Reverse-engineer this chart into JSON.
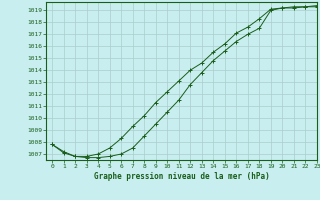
{
  "title": "Graphe pression niveau de la mer (hPa)",
  "bg_color": "#c8eef0",
  "grid_color": "#aacccc",
  "line_color": "#1a5e1a",
  "marker_color": "#1a5e1a",
  "xlim": [
    -0.5,
    23
  ],
  "ylim": [
    1006.5,
    1019.7
  ],
  "xticks": [
    0,
    1,
    2,
    3,
    4,
    5,
    6,
    7,
    8,
    9,
    10,
    11,
    12,
    13,
    14,
    15,
    16,
    17,
    18,
    19,
    20,
    21,
    22,
    23
  ],
  "yticks": [
    1007,
    1008,
    1009,
    1010,
    1011,
    1012,
    1013,
    1014,
    1015,
    1016,
    1017,
    1018,
    1019
  ],
  "series1_x": [
    0,
    1,
    2,
    3,
    4,
    5,
    6,
    7,
    8,
    9,
    10,
    11,
    12,
    13,
    14,
    15,
    16,
    17,
    18,
    19,
    20,
    21,
    22,
    23
  ],
  "series1_y": [
    1007.8,
    1007.2,
    1006.8,
    1006.8,
    1007.0,
    1007.5,
    1008.3,
    1009.3,
    1010.2,
    1011.3,
    1012.2,
    1013.1,
    1014.0,
    1014.6,
    1015.5,
    1016.2,
    1017.1,
    1017.6,
    1018.3,
    1019.1,
    1019.2,
    1019.3,
    1019.3,
    1019.4
  ],
  "series2_x": [
    0,
    1,
    2,
    3,
    4,
    5,
    6,
    7,
    8,
    9,
    10,
    11,
    12,
    13,
    14,
    15,
    16,
    17,
    18,
    19,
    20,
    21,
    22,
    23
  ],
  "series2_y": [
    1007.8,
    1007.1,
    1006.8,
    1006.7,
    1006.7,
    1006.8,
    1007.0,
    1007.5,
    1008.5,
    1009.5,
    1010.5,
    1011.5,
    1012.8,
    1013.8,
    1014.8,
    1015.6,
    1016.4,
    1017.0,
    1017.5,
    1019.0,
    1019.2,
    1019.2,
    1019.3,
    1019.3
  ]
}
